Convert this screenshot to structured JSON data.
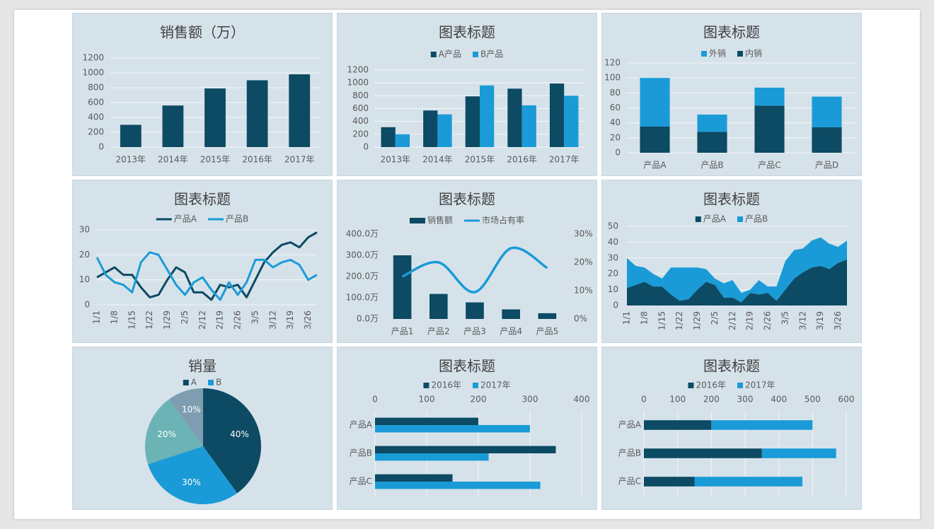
{
  "chart_data": [
    {
      "type": "bar",
      "title": "销售额（万）",
      "categories": [
        "2013年",
        "2014年",
        "2015年",
        "2016年",
        "2017年"
      ],
      "values": [
        300,
        560,
        790,
        900,
        980
      ],
      "color": "#0d4a63",
      "ylim": [
        0,
        1200
      ],
      "yticks": [
        0,
        200,
        400,
        600,
        800,
        1000,
        1200
      ],
      "grid": true
    },
    {
      "type": "bar",
      "title": "图表标题",
      "categories": [
        "2013年",
        "2014年",
        "2015年",
        "2016年",
        "2017年"
      ],
      "series": [
        {
          "name": "A产品",
          "color": "#0d4a63",
          "values": [
            310,
            570,
            790,
            910,
            990
          ]
        },
        {
          "name": "B产品",
          "color": "#1a9bd7",
          "values": [
            200,
            510,
            960,
            650,
            800
          ]
        }
      ],
      "ylim": [
        0,
        1200
      ],
      "yticks": [
        0,
        200,
        400,
        600,
        800,
        1000,
        1200
      ],
      "grid": true
    },
    {
      "type": "bar",
      "title": "图表标题",
      "stacked": true,
      "categories": [
        "产品A",
        "产品B",
        "产品C",
        "产品D"
      ],
      "series": [
        {
          "name": "内销",
          "color": "#0d4a63",
          "values": [
            35,
            28,
            63,
            34
          ]
        },
        {
          "name": "外销",
          "color": "#1a9bd7",
          "values": [
            65,
            23,
            24,
            41
          ]
        }
      ],
      "ylim": [
        0,
        120
      ],
      "yticks": [
        0,
        20,
        40,
        60,
        80,
        100,
        120
      ],
      "grid": true
    },
    {
      "type": "line",
      "title": "图表标题",
      "categories": [
        "1/1",
        null,
        "1/8",
        null,
        "1/15",
        null,
        "1/22",
        null,
        "1/29",
        null,
        "2/5",
        null,
        "2/12",
        null,
        "2/19",
        null,
        "2/26",
        null,
        "3/5",
        null,
        "3/12",
        null,
        "3/19",
        null,
        "3/26",
        null
      ],
      "series": [
        {
          "name": "产品A",
          "color": "#0d4a63",
          "values": [
            11,
            13,
            15,
            12,
            12,
            7,
            3,
            4,
            10,
            15,
            13,
            5,
            5,
            2,
            8,
            7,
            8,
            3,
            10,
            17,
            21,
            24,
            25,
            23,
            27,
            29
          ]
        },
        {
          "name": "产品B",
          "color": "#1a9bd7",
          "values": [
            19,
            12,
            9,
            8,
            5,
            17,
            21,
            20,
            14,
            8,
            4,
            9,
            11,
            6,
            2,
            9,
            4,
            9,
            18,
            18,
            15,
            17,
            18,
            16,
            10,
            12
          ]
        }
      ],
      "ylim": [
        0,
        30
      ],
      "yticks": [
        0,
        10,
        20,
        30
      ],
      "grid": true
    },
    {
      "type": "combo",
      "title": "图表标题",
      "categories": [
        "产品1",
        "产品2",
        "产品3",
        "产品4",
        "产品5"
      ],
      "series": [
        {
          "name": "销售额",
          "color": "#0d4a63",
          "values": [
            300,
            118,
            78,
            45,
            27
          ]
        },
        {
          "name": "市场占有率",
          "color": "#1a9bd7",
          "axis": "y2",
          "values": [
            15,
            20,
            9.5,
            25,
            18
          ]
        }
      ],
      "ylim": [
        0,
        400
      ],
      "yticks": [
        {
          "value": 0,
          "label": "0.0万"
        },
        {
          "value": 100,
          "label": "100.0万"
        },
        {
          "value": 200,
          "label": "200.0万"
        },
        {
          "value": 300,
          "label": "300.0万"
        },
        {
          "value": 400,
          "label": "400.0万"
        }
      ],
      "y2lim": [
        0,
        30
      ],
      "y2ticks": [
        {
          "value": 0,
          "label": "0%"
        },
        {
          "value": 10,
          "label": "10%"
        },
        {
          "value": 20,
          "label": "20%"
        },
        {
          "value": 30,
          "label": "30%"
        }
      ],
      "grid": false
    },
    {
      "type": "area",
      "title": "图表标题",
      "stacked": true,
      "categories": [
        "1/1",
        null,
        "1/8",
        null,
        "1/15",
        null,
        "1/22",
        null,
        "1/29",
        null,
        "2/5",
        null,
        "2/12",
        null,
        "2/19",
        null,
        "2/26",
        null,
        "3/5",
        null,
        "3/12",
        null,
        "3/19",
        null,
        "3/26",
        null
      ],
      "series": [
        {
          "name": "产品A",
          "color": "#0d4a63",
          "values": [
            11,
            13,
            15,
            12,
            12,
            7,
            3,
            4,
            10,
            15,
            13,
            5,
            5,
            2,
            8,
            7,
            8,
            3,
            10,
            17,
            21,
            24,
            25,
            23,
            27,
            29
          ]
        },
        {
          "name": "产品B",
          "color": "#1a9bd7",
          "values": [
            19,
            12,
            9,
            8,
            5,
            17,
            21,
            20,
            14,
            8,
            4,
            9,
            11,
            6,
            2,
            9,
            4,
            9,
            18,
            18,
            15,
            17,
            18,
            16,
            10,
            12
          ]
        }
      ],
      "ylim": [
        0,
        50
      ],
      "yticks": [
        0,
        10,
        20,
        30,
        40,
        50
      ],
      "grid": true
    },
    {
      "type": "pie",
      "title": "销量",
      "categories": [
        "A",
        "B",
        null,
        null
      ],
      "values": [
        40,
        30,
        20,
        10
      ],
      "value_labels": [
        "40%",
        "30%",
        "20%",
        "10%"
      ],
      "colors": [
        "#0d4a63",
        "#1a9bd7",
        "#6bb3b5",
        "#7f9db0"
      ]
    },
    {
      "type": "bar",
      "orientation": "horizontal",
      "title": "图表标题",
      "categories": [
        "产品A",
        "产品B",
        "产品C"
      ],
      "series": [
        {
          "name": "2016年",
          "color": "#0d4a63",
          "values": [
            200,
            350,
            150
          ]
        },
        {
          "name": "2017年",
          "color": "#1a9bd7",
          "values": [
            300,
            220,
            320
          ]
        }
      ],
      "xlim": [
        0,
        400
      ],
      "xticks": [
        0,
        100,
        200,
        300,
        400
      ],
      "grid": true
    },
    {
      "type": "bar",
      "orientation": "horizontal",
      "stacked": true,
      "title": "图表标题",
      "categories": [
        "产品A",
        "产品B",
        "产品C"
      ],
      "series": [
        {
          "name": "2016年",
          "color": "#0d4a63",
          "values": [
            200,
            350,
            150
          ]
        },
        {
          "name": "2017年",
          "color": "#1a9bd7",
          "values": [
            300,
            220,
            320
          ]
        }
      ],
      "xlim": [
        0,
        600
      ],
      "xticks": [
        0,
        100,
        200,
        300,
        400,
        500,
        600
      ],
      "grid": true
    }
  ]
}
